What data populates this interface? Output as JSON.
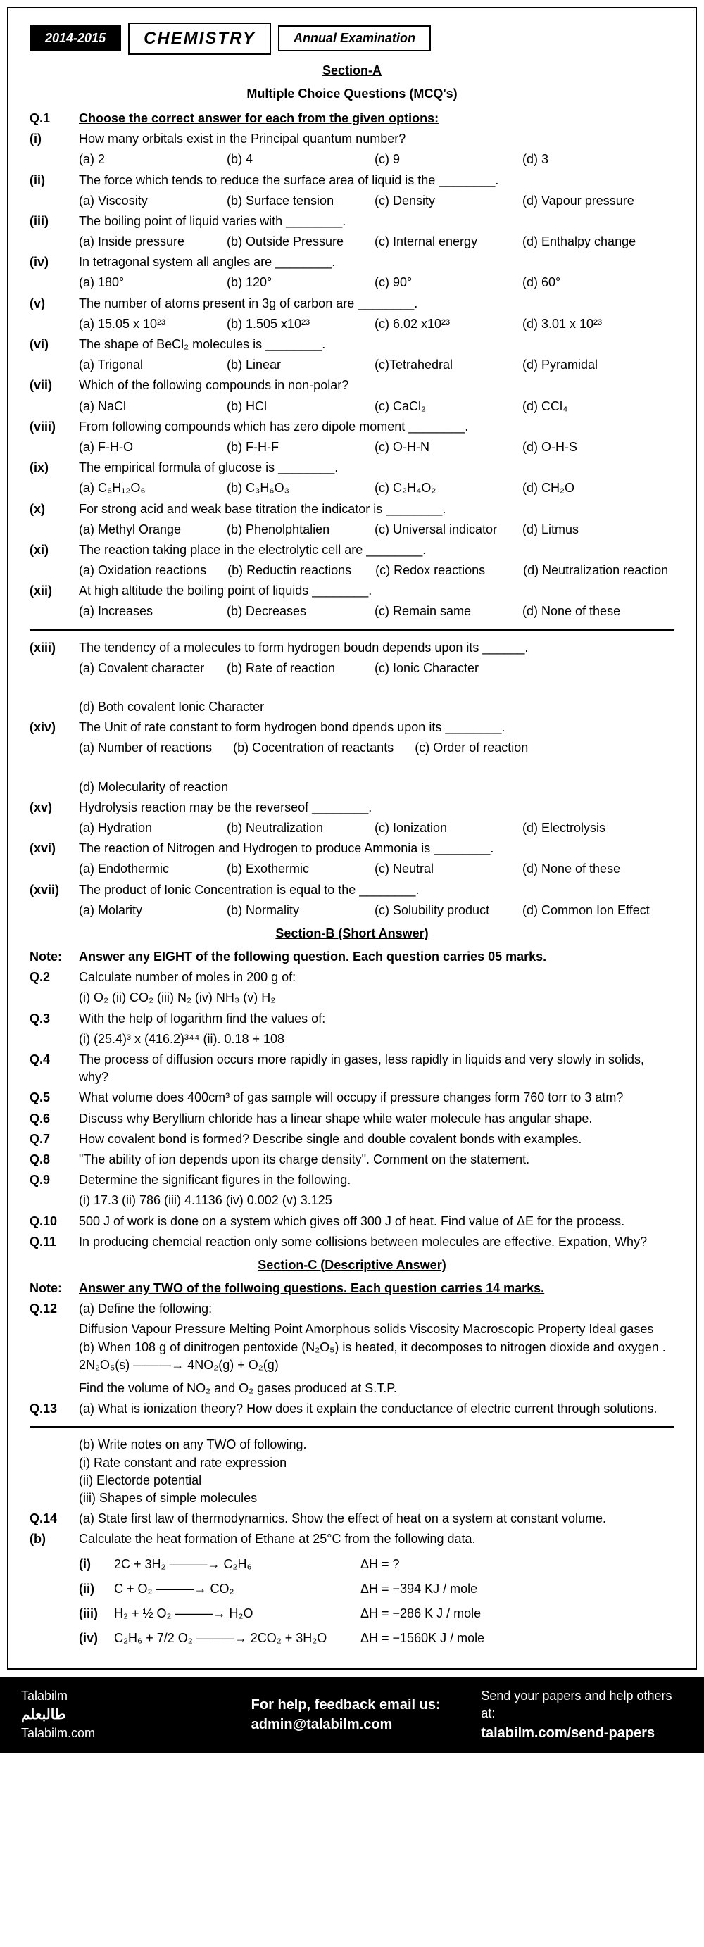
{
  "header": {
    "year": "2014-2015",
    "subject": "CHEMISTRY",
    "exam": "Annual Examination"
  },
  "sectionA": {
    "title": "Section-A",
    "subtitle": "Multiple Choice Questions (MCQ's)",
    "q1_instruction": "Choose the correct answer for each from the given options:",
    "questions": [
      {
        "num": "(i)",
        "text": "How many orbitals exist in the Principal quantum number?",
        "opts": [
          "(a) 2",
          "(b) 4",
          "(c) 9",
          "(d) 3"
        ]
      },
      {
        "num": "(ii)",
        "text": "The force which tends to reduce the surface area of liquid is the ________.",
        "opts": [
          "(a) Viscosity",
          "(b) Surface tension",
          "(c) Density",
          "(d) Vapour pressure"
        ]
      },
      {
        "num": "(iii)",
        "text": "The boiling point of liquid varies with ________.",
        "opts": [
          "(a) Inside pressure",
          "(b) Outside Pressure",
          "(c) Internal energy",
          "(d) Enthalpy change"
        ]
      },
      {
        "num": "(iv)",
        "text": "In tetragonal system all angles are ________.",
        "opts": [
          "(a) 180°",
          "(b) 120°",
          "(c) 90°",
          "(d) 60°"
        ]
      },
      {
        "num": "(v)",
        "text": "The number of atoms present in 3g of carbon are ________.",
        "opts": [
          "(a) 15.05 x 10²³",
          "(b) 1.505 x10²³",
          "(c) 6.02 x10²³",
          "(d) 3.01 x 10²³"
        ]
      },
      {
        "num": "(vi)",
        "text": "The shape of BeCl₂ molecules is ________.",
        "opts": [
          "(a) Trigonal",
          "(b) Linear",
          "(c)Tetrahedral",
          "(d) Pyramidal"
        ]
      },
      {
        "num": "(vii)",
        "text": "Which of the following compounds in non-polar?",
        "opts": [
          "(a) NaCl",
          "(b) HCl",
          "(c) CaCl₂",
          "(d) CCl₄"
        ]
      },
      {
        "num": "(viii)",
        "text": "From following compounds which has zero dipole moment ________.",
        "opts": [
          "(a) F-H-O",
          "(b) F-H-F",
          "(c) O-H-N",
          "(d) O-H-S"
        ]
      },
      {
        "num": "(ix)",
        "text": "The empirical formula of glucose is ________.",
        "opts": [
          "(a) C₆H₁₂O₆",
          "(b) C₃H₆O₃",
          "(c) C₂H₄O₂",
          "(d) CH₂O"
        ]
      },
      {
        "num": "(x)",
        "text": "For strong acid and weak base titration the indicator is ________.",
        "opts": [
          "(a) Methyl Orange",
          "(b) Phenolphtalien",
          "(c) Universal indicator",
          "(d) Litmus"
        ]
      },
      {
        "num": "(xi)",
        "text": "The reaction taking place in the electrolytic cell are ________.",
        "opts": [
          "(a) Oxidation reactions",
          "(b) Reductin reactions",
          "(c) Redox reactions",
          "(d) Neutralization reaction"
        ]
      },
      {
        "num": "(xii)",
        "text": "At high altitude the boiling point of liquids ________.",
        "opts": [
          "(a) Increases",
          "(b) Decreases",
          "(c) Remain same",
          "(d) None of these"
        ]
      },
      {
        "num": "(xiii)",
        "text": "The tendency of a molecules to form hydrogen boudn depends upon its ______.",
        "opts": [
          "(a) Covalent character",
          "(b) Rate of reaction",
          "(c) Ionic Character",
          "(d) Both covalent Ionic Character"
        ]
      },
      {
        "num": "(xiv)",
        "text": "The Unit of rate constant to form hydrogen bond dpends upon its ________.",
        "opts": [
          "(a) Number of reactions",
          "(b) Cocentration of reactants",
          "(c) Order of reaction",
          "(d) Molecularity of reaction"
        ]
      },
      {
        "num": "(xv)",
        "text": "Hydrolysis reaction may be the reverseof ________.",
        "opts": [
          "(a) Hydration",
          "(b) Neutralization",
          "(c) Ionization",
          "(d) Electrolysis"
        ]
      },
      {
        "num": "(xvi)",
        "text": "The reaction of Nitrogen and Hydrogen to produce Ammonia is ________.",
        "opts": [
          "(a) Endothermic",
          "(b) Exothermic",
          "(c) Neutral",
          "(d) None of these"
        ]
      },
      {
        "num": "(xvii)",
        "text": "The product of Ionic Concentration is equal to the ________.",
        "opts": [
          "(a) Molarity",
          "(b) Normality",
          "(c) Solubility product",
          "(d) Common Ion Effect"
        ]
      }
    ]
  },
  "sectionB": {
    "title": "Section-B (Short Answer)",
    "note": "Answer any EIGHT of the following question. Each question carries 05 marks.",
    "questions": [
      {
        "num": "Q.2",
        "text": "Calculate number of moles in 200 g of:",
        "sub": "(i) O₂   (ii) CO₂   (iii) N₂   (iv) NH₃   (v) H₂"
      },
      {
        "num": "Q.3",
        "text": "With the help of logarithm find the values of:",
        "sub": "(i) (25.4)³ x (416.2)³⁴⁴   (ii). 0.18 + 108"
      },
      {
        "num": "Q.4",
        "text": "The process of diffusion occurs more rapidly in gases, less rapidly in liquids and very slowly in solids, why?"
      },
      {
        "num": "Q.5",
        "text": "What volume does 400cm³ of gas sample will occupy if pressure changes form 760 torr to 3 atm?"
      },
      {
        "num": "Q.6",
        "text": "Discuss why Beryllium chloride has a linear shape while water molecule has angular shape."
      },
      {
        "num": "Q.7",
        "text": "How covalent bond is formed? Describe single and double covalent bonds with examples."
      },
      {
        "num": "Q.8",
        "text": "\"The ability of ion depends upon its charge density\". Comment on the statement."
      },
      {
        "num": "Q.9",
        "text": "Determine the significant figures in the following.",
        "sub": "(i) 17.3   (ii) 786   (iii) 4.1136   (iv) 0.002   (v) 3.125"
      },
      {
        "num": "Q.10",
        "text": "500 J of work is done on a system which gives off 300 J of heat. Find value of ΔE for the process."
      },
      {
        "num": "Q.11",
        "text": "In producing chemcial reaction only some collisions between molecules are effective. Expation, Why?"
      }
    ]
  },
  "sectionC": {
    "title": "Section-C (Descriptive Answer)",
    "note": "Answer any TWO of the follwoing questions. Each question carries 14 marks.",
    "q12": {
      "num": "Q.12",
      "a": "(a) Define the following:",
      "terms": "Diffusion   Vapour Pressure   Melting Point   Amorphous solids   Viscosity   Macroscopic Property   Ideal gases",
      "b": "(b) When 108 g of dinitrogen pentoxide (N₂O₅) is heated, it decomposes to nitrogen dioxide and oxygen . 2N₂O₅(s) ———→ 4NO₂(g) + O₂(g)",
      "find": "Find the volume of NO₂ and O₂ gases produced at S.T.P."
    },
    "q13": {
      "num": "Q.13",
      "a": "(a) What is ionization theory? How does it explain the conductance of electric current through solutions.",
      "b": "(b) Write notes on any TWO of following.",
      "b_items": [
        "(i) Rate constant and rate expression",
        "(ii) Electorde potential",
        "(iii) Shapes of simple molecules"
      ]
    },
    "q14": {
      "num": "Q.14",
      "a": "(a) State first law of thermodynamics. Show the effect of heat on a system at constant volume.",
      "b_label": "(b)",
      "b": "Calculate the heat formation of Ethane at 25°C from the following data.",
      "eqs": [
        {
          "num": "(i)",
          "eq": "2C + 3H₂ ———→ C₂H₆",
          "dh": "ΔH = ?"
        },
        {
          "num": "(ii)",
          "eq": "C + O₂ ———→ CO₂",
          "dh": "ΔH = −394 KJ / mole"
        },
        {
          "num": "(iii)",
          "eq": "H₂ + ½ O₂ ———→ H₂O",
          "dh": "ΔH = −286 K J / mole"
        },
        {
          "num": "(iv)",
          "eq": "C₂H₆ + 7/2 O₂ ———→ 2CO₂ + 3H₂O",
          "dh": "ΔH = −1560K J / mole"
        }
      ]
    }
  },
  "footer": {
    "brand_en": "Talabilm",
    "brand_ar": "طالبعلم",
    "site": "Talabilm.com",
    "help_text": "For help, feedback email us:",
    "email": "admin@talabilm.com",
    "send_text": "Send your papers and help others at:",
    "send_url": "talabilm.com/send-papers"
  }
}
